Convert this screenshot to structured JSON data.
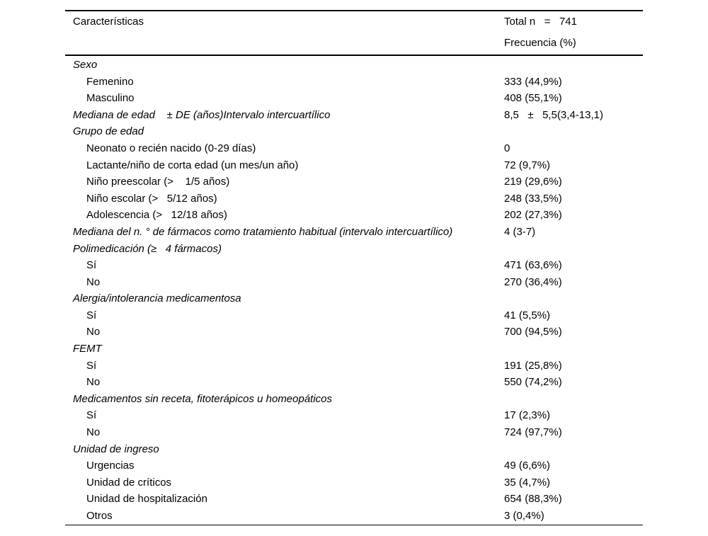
{
  "page": {
    "background_color": "#ffffff",
    "text_color": "#000000",
    "rule_color": "#000000"
  },
  "table": {
    "header": {
      "characteristics_label": "Características",
      "total_label": "Total n   =   741",
      "frequency_label": "Frecuencia (%)"
    },
    "rows": [
      {
        "type": "section",
        "label": "Sexo",
        "value": ""
      },
      {
        "type": "item",
        "label": "Femenino",
        "value": "333 (44,9%)"
      },
      {
        "type": "item",
        "label": "Masculino",
        "value": "408 (55,1%)"
      },
      {
        "type": "section",
        "label": "Mediana de edad    ± DE (años)Intervalo intercuartílico",
        "value": "8,5   ±   5,5(3,4-13,1)"
      },
      {
        "type": "section",
        "label": "Grupo de edad",
        "value": ""
      },
      {
        "type": "item",
        "label": "Neonato o recién nacido (0-29 días)",
        "value": "0"
      },
      {
        "type": "item",
        "label": "Lactante/niño de corta edad (un mes/un año)",
        "value": "72 (9,7%)"
      },
      {
        "type": "item",
        "label": "Niño preescolar (>    1/5 años)",
        "value": "219 (29,6%)"
      },
      {
        "type": "item",
        "label": "Niño escolar (>   5/12 años)",
        "value": "248 (33,5%)"
      },
      {
        "type": "item",
        "label": "Adolescencia (>   12/18 años)",
        "value": "202 (27,3%)"
      },
      {
        "type": "section",
        "label": "Mediana del n. ° de fármacos como tratamiento habitual (intervalo intercuartílico)",
        "value": "4 (3-7)"
      },
      {
        "type": "section",
        "label": "Polimedicación (≥   4 fármacos)",
        "value": ""
      },
      {
        "type": "item",
        "label": "Sí",
        "value": "471 (63,6%)"
      },
      {
        "type": "item",
        "label": "No",
        "value": "270 (36,4%)"
      },
      {
        "type": "section",
        "label": "Alergia/intolerancia medicamentosa",
        "value": ""
      },
      {
        "type": "item",
        "label": "Sí",
        "value": "41 (5,5%)"
      },
      {
        "type": "item",
        "label": "No",
        "value": "700 (94,5%)"
      },
      {
        "type": "section",
        "label": "FEMT",
        "value": ""
      },
      {
        "type": "item",
        "label": "Sí",
        "value": "191 (25,8%)"
      },
      {
        "type": "item",
        "label": "No",
        "value": "550 (74,2%)"
      },
      {
        "type": "section",
        "label": "Medicamentos sin receta, fitoterápicos u homeopáticos",
        "value": ""
      },
      {
        "type": "item",
        "label": "Sí",
        "value": "17 (2,3%)"
      },
      {
        "type": "item",
        "label": "No",
        "value": "724 (97,7%)"
      },
      {
        "type": "section",
        "label": "Unidad de ingreso",
        "value": ""
      },
      {
        "type": "item",
        "label": "Urgencias",
        "value": "49 (6,6%)"
      },
      {
        "type": "item",
        "label": "Unidad de críticos",
        "value": "35 (4,7%)"
      },
      {
        "type": "item",
        "label": "Unidad de hospitalización",
        "value": "654 (88,3%)"
      },
      {
        "type": "item",
        "label": "Otros",
        "value": "3 (0,4%)"
      }
    ]
  }
}
